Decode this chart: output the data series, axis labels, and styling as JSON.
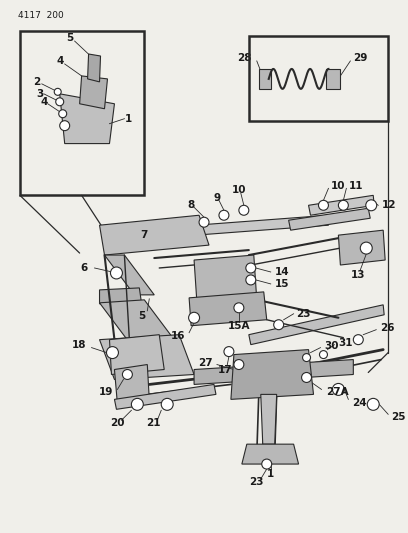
{
  "title_code": "4117 200",
  "bg_color": "#f0efea",
  "line_color": "#2a2a2a",
  "text_color": "#1a1a1a",
  "figsize": [
    4.08,
    5.33
  ],
  "dpi": 100
}
